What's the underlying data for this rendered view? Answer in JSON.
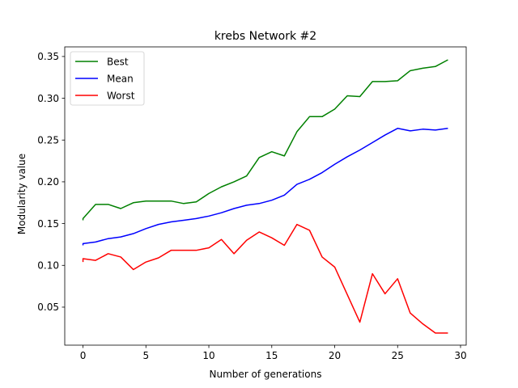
{
  "chart_data": {
    "type": "line",
    "title": "krebs Network #2",
    "xlabel": "Number of generations",
    "ylabel": "Modularity value",
    "xlim": [
      -1.45,
      30.45
    ],
    "ylim": [
      0.0045,
      0.3615
    ],
    "x_ticks": [
      0,
      5,
      10,
      15,
      20,
      25,
      30
    ],
    "x_tick_labels": [
      "0",
      "5",
      "10",
      "15",
      "20",
      "25",
      "30"
    ],
    "y_ticks": [
      0.05,
      0.1,
      0.15,
      0.2,
      0.25,
      0.3,
      0.35
    ],
    "y_tick_labels": [
      "0.05",
      "0.10",
      "0.15",
      "0.20",
      "0.25",
      "0.30",
      "0.35"
    ],
    "grid": false,
    "legend": "top-left",
    "x": [
      0,
      1,
      2,
      3,
      4,
      5,
      6,
      7,
      8,
      9,
      10,
      11,
      12,
      13,
      14,
      15,
      16,
      17,
      18,
      19,
      20,
      21,
      22,
      23,
      24,
      25,
      26,
      27,
      28,
      29
    ],
    "series": [
      {
        "name": "Best",
        "color": "#008000",
        "start": [
          0,
          0.154
        ],
        "values": [
          0.156,
          0.173,
          0.173,
          0.168,
          0.175,
          0.177,
          0.177,
          0.177,
          0.174,
          0.176,
          0.186,
          0.194,
          0.2,
          0.207,
          0.229,
          0.236,
          0.231,
          0.26,
          0.278,
          0.278,
          0.287,
          0.303,
          0.302,
          0.32,
          0.32,
          0.321,
          0.333,
          0.336,
          0.338,
          0.346
        ]
      },
      {
        "name": "Mean",
        "color": "#0000ff",
        "start": [
          0,
          0.124
        ],
        "values": [
          0.126,
          0.128,
          0.132,
          0.134,
          0.138,
          0.144,
          0.149,
          0.152,
          0.154,
          0.156,
          0.159,
          0.163,
          0.168,
          0.172,
          0.174,
          0.178,
          0.184,
          0.197,
          0.203,
          0.211,
          0.221,
          0.23,
          0.238,
          0.247,
          0.256,
          0.264,
          0.261,
          0.263,
          0.262,
          0.264
        ]
      },
      {
        "name": "Worst",
        "color": "#ff0000",
        "start": [
          0,
          0.104
        ],
        "values": [
          0.108,
          0.106,
          0.114,
          0.11,
          0.095,
          0.104,
          0.109,
          0.118,
          0.118,
          0.118,
          0.121,
          0.131,
          0.114,
          0.13,
          0.14,
          0.133,
          0.124,
          0.149,
          0.142,
          0.11,
          0.098,
          0.065,
          0.032,
          0.09,
          0.066,
          0.084,
          0.043,
          0.03,
          0.019,
          0.019
        ]
      }
    ]
  }
}
